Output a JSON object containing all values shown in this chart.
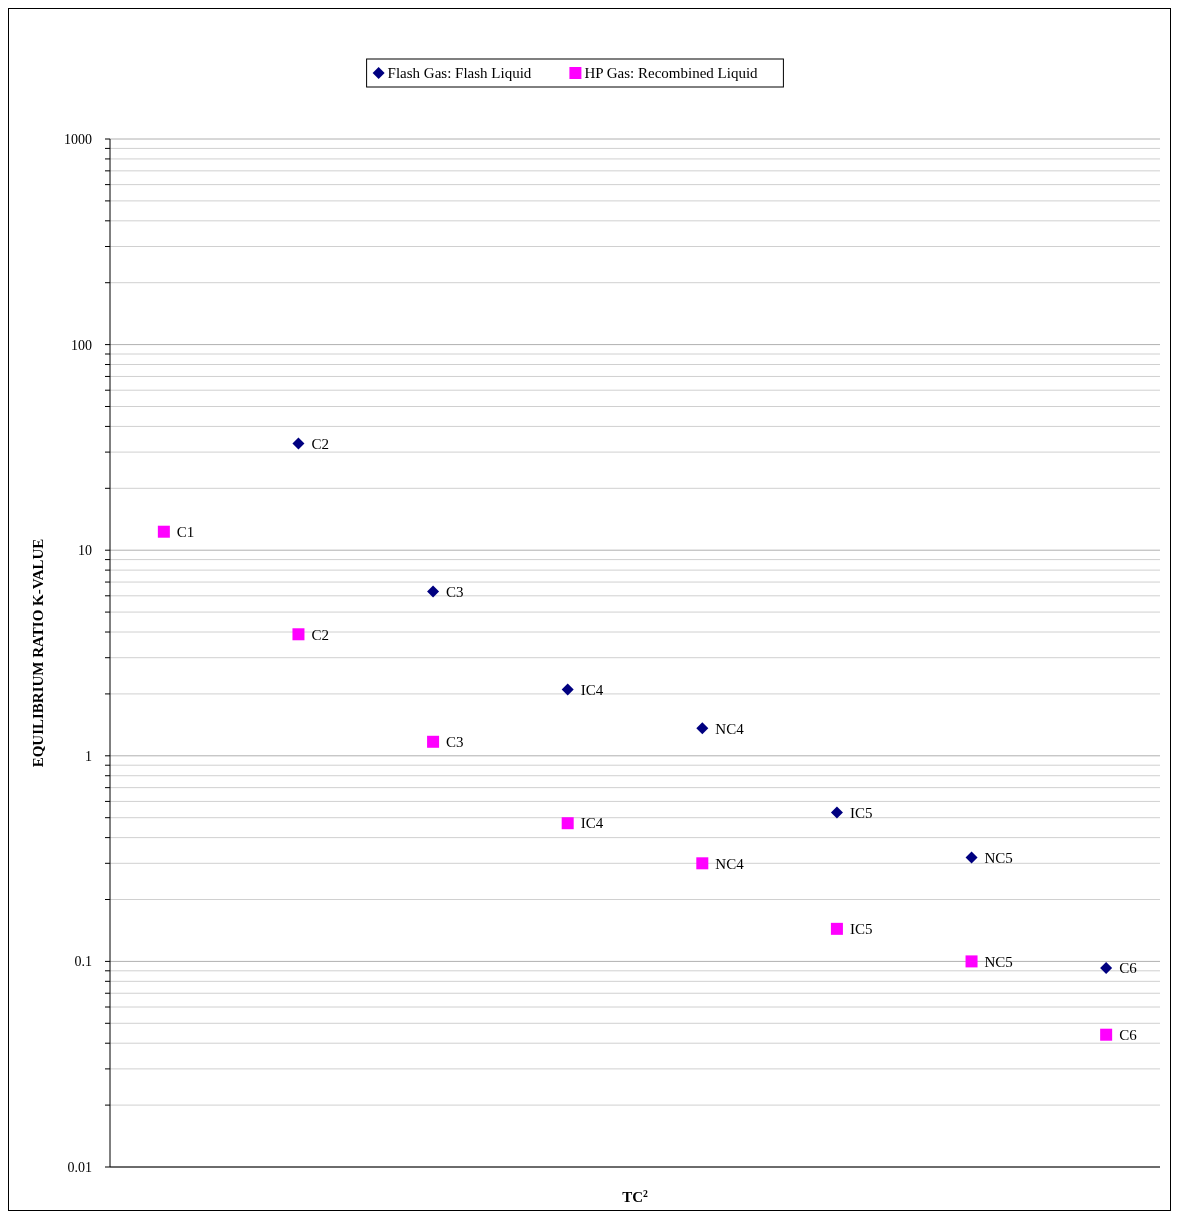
{
  "chart_data": {
    "type": "scatter",
    "xlabel": "TC$^{2}$",
    "ylabel": "EQUILIBRIUM RATIO K-VALUE",
    "log": "y",
    "grid": "y",
    "legend": "top",
    "tick_labels": "y",
    "categories": [
      null,
      null,
      null,
      null,
      null,
      null,
      null,
      null
    ],
    "ylim": [
      0.01,
      1000
    ],
    "yticks": [
      0.01,
      {
        "value": 0.02,
        "label": null
      },
      {
        "value": 0.03,
        "label": null
      },
      {
        "value": 0.04,
        "label": null
      },
      {
        "value": 0.05,
        "label": null
      },
      {
        "value": 0.06,
        "label": null
      },
      {
        "value": 0.07,
        "label": null
      },
      {
        "value": 0.08,
        "label": null
      },
      {
        "value": 0.09,
        "label": null
      },
      0.1,
      {
        "value": 0.2,
        "label": null
      },
      {
        "value": 0.3,
        "label": null
      },
      {
        "value": 0.4,
        "label": null
      },
      {
        "value": 0.5,
        "label": null
      },
      {
        "value": 0.6,
        "label": null
      },
      {
        "value": 0.7,
        "label": null
      },
      {
        "value": 0.8,
        "label": null
      },
      {
        "value": 0.9,
        "label": null
      },
      1,
      {
        "value": 2,
        "label": null
      },
      {
        "value": 3,
        "label": null
      },
      {
        "value": 4,
        "label": null
      },
      {
        "value": 5,
        "label": null
      },
      {
        "value": 6,
        "label": null
      },
      {
        "value": 7,
        "label": null
      },
      {
        "value": 8,
        "label": null
      },
      {
        "value": 9,
        "label": null
      },
      10,
      {
        "value": 20,
        "label": null
      },
      {
        "value": 30,
        "label": null
      },
      {
        "value": 40,
        "label": null
      },
      {
        "value": 50,
        "label": null
      },
      {
        "value": 60,
        "label": null
      },
      {
        "value": 70,
        "label": null
      },
      {
        "value": 80,
        "label": null
      },
      {
        "value": 90,
        "label": null
      },
      100,
      {
        "value": 200,
        "label": null
      },
      {
        "value": 300,
        "label": null
      },
      {
        "value": 400,
        "label": null
      },
      {
        "value": 500,
        "label": null
      },
      {
        "value": 600,
        "label": null
      },
      {
        "value": 700,
        "label": null
      },
      {
        "value": 800,
        "label": null
      },
      {
        "value": 900,
        "label": null
      },
      1000
    ],
    "series": [
      {
        "name": "Flash Gas: Flash Liquid",
        "color": "#000080",
        "marker": "diamond",
        "values": [
          null,
          33,
          6.3,
          2.1,
          1.36,
          0.53,
          0.32,
          0.093
        ]
      },
      {
        "name": "HP Gas: Recombined Liquid",
        "color": "#ff00ff",
        "marker": "square",
        "values": [
          12.3,
          3.9,
          1.17,
          0.47,
          0.3,
          0.144,
          0.1,
          0.044
        ]
      }
    ],
    "annotations": [
      "C2",
      "C3",
      "IC4",
      "NC4",
      "IC5",
      "NC5",
      "C6",
      "C1",
      "C2",
      "C3",
      "IC4",
      "NC4",
      "IC5",
      "NC5",
      "C6"
    ]
  }
}
